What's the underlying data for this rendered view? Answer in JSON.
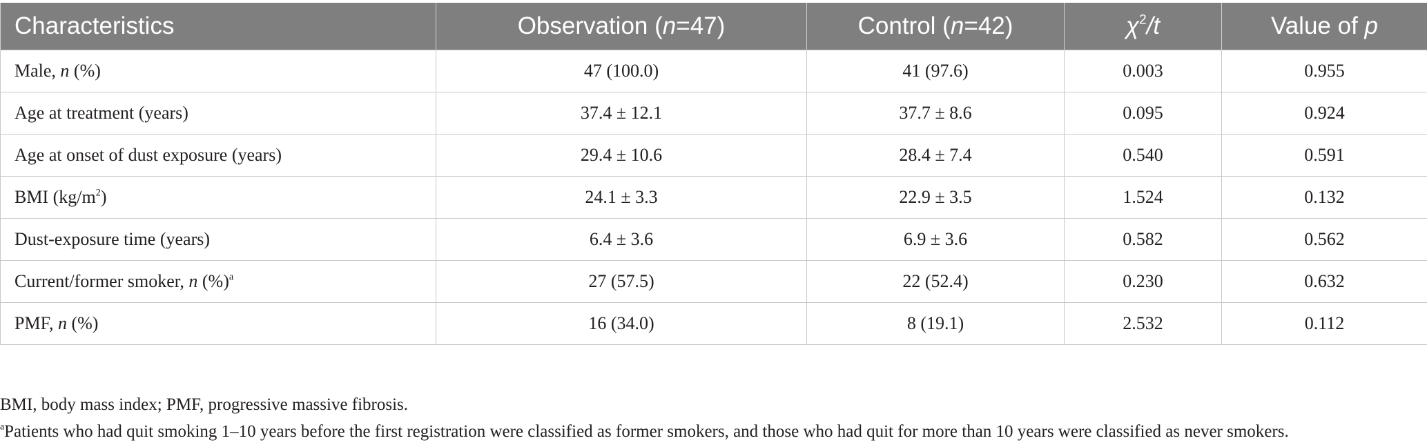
{
  "table": {
    "headers": {
      "characteristics": "Characteristics",
      "observation_label": "Observation",
      "observation_n": "47",
      "control_label": "Control",
      "control_n": "42",
      "chi_symbol": "χ",
      "chi_exp": "2",
      "chi_t": "/t",
      "p_label": "Value of",
      "p_symbol": "p"
    },
    "rows": [
      {
        "label_pre": "Male, ",
        "label_ital": "n",
        "label_post": " (%)",
        "label_sup": "",
        "observation": "47 (100.0)",
        "control": "41 (97.6)",
        "chi_t": "0.003",
        "p_value": "0.955"
      },
      {
        "label_pre": "Age at treatment (years)",
        "label_ital": "",
        "label_post": "",
        "label_sup": "",
        "observation": "37.4 ± 12.1",
        "control": "37.7 ± 8.6",
        "chi_t": "0.095",
        "p_value": "0.924"
      },
      {
        "label_pre": "Age at onset of dust exposure (years)",
        "label_ital": "",
        "label_post": "",
        "label_sup": "",
        "observation": "29.4 ± 10.6",
        "control": "28.4 ± 7.4",
        "chi_t": "0.540",
        "p_value": "0.591"
      },
      {
        "label_pre": "BMI (kg/m",
        "label_ital": "",
        "label_post": ")",
        "label_sup": "2",
        "observation": "24.1 ± 3.3",
        "control": "22.9 ± 3.5",
        "chi_t": "1.524",
        "p_value": "0.132"
      },
      {
        "label_pre": "Dust-exposure time (years)",
        "label_ital": "",
        "label_post": "",
        "label_sup": "",
        "observation": "6.4 ± 3.6",
        "control": "6.9 ± 3.6",
        "chi_t": "0.582",
        "p_value": "0.562"
      },
      {
        "label_pre": "Current/former smoker, ",
        "label_ital": "n",
        "label_post": " (%)",
        "label_sup": "a",
        "observation": "27 (57.5)",
        "control": "22 (52.4)",
        "chi_t": "0.230",
        "p_value": "0.632"
      },
      {
        "label_pre": "PMF, ",
        "label_ital": "n",
        "label_post": " (%)",
        "label_sup": "",
        "observation": "16 (34.0)",
        "control": "8 (19.1)",
        "chi_t": "2.532",
        "p_value": "0.112"
      }
    ]
  },
  "footnotes": {
    "abbreviations": "BMI, body mass index; PMF, progressive massive fibrosis.",
    "a_marker": "a",
    "a_text": "Patients who had quit smoking 1–10 years before the first registration were classified as former smokers, and those who had quit for more than 10 years were classified as never smokers."
  }
}
